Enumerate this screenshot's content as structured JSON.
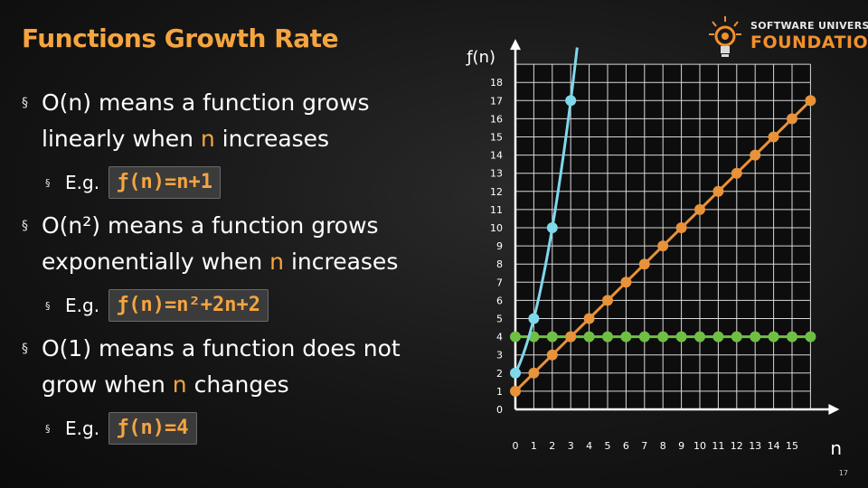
{
  "slide": {
    "title": "Functions Growth Rate",
    "number": "17"
  },
  "logo": {
    "line1": "SOFTWARE UNIVERSITY",
    "line2": "FOUNDATION",
    "icon": "lightbulb-gear-icon"
  },
  "bullets": [
    {
      "marker": "§",
      "pre": "O(n) means a function grows linearly when ",
      "var": "n",
      "post": " increases",
      "example_label": "E.g.",
      "example_code": "ƒ(n)=n+1"
    },
    {
      "marker": "§",
      "pre": "O(n²) means a function grows exponentially when ",
      "var": "n",
      "post": " increases",
      "example_label": "E.g.",
      "example_code": "ƒ(n)=n²+2n+2"
    },
    {
      "marker": "§",
      "pre": "O(1) means a function does not grow when ",
      "var": "n",
      "post": " changes",
      "example_label": "E.g.",
      "example_code": "ƒ(n)=4"
    }
  ],
  "colors": {
    "accent": "#f5a540",
    "linear": "#e8923a",
    "quadratic": "#7fd8ec",
    "constant": "#6fbf45"
  },
  "chart_data": {
    "type": "line",
    "ylabel": "ƒ(n)",
    "xlabel": "n",
    "x_ticks": [
      "0",
      "1",
      "2",
      "3",
      "4",
      "5",
      "6",
      "7",
      "8",
      "9",
      "10",
      "11",
      "12",
      "13",
      "14",
      "15"
    ],
    "y_ticks": [
      "0",
      "1",
      "2",
      "3",
      "4",
      "5",
      "6",
      "7",
      "8",
      "9",
      "10",
      "11",
      "12",
      "13",
      "14",
      "15",
      "16",
      "17",
      "18"
    ],
    "xlim": [
      0,
      16
    ],
    "ylim": [
      0,
      19
    ],
    "grid": true,
    "series": [
      {
        "color": "#6fbf45",
        "x": [
          0,
          1,
          2,
          3,
          4,
          5,
          6,
          7,
          8,
          9,
          10,
          11,
          12,
          13,
          14,
          15,
          16
        ],
        "y": [
          4,
          4,
          4,
          4,
          4,
          4,
          4,
          4,
          4,
          4,
          4,
          4,
          4,
          4,
          4,
          4,
          4
        ]
      },
      {
        "color": "#e8923a",
        "x": [
          0,
          1,
          2,
          3,
          4,
          5,
          6,
          7,
          8,
          9,
          10,
          11,
          12,
          13,
          14,
          15,
          16
        ],
        "y": [
          1,
          2,
          3,
          4,
          5,
          6,
          7,
          8,
          9,
          10,
          11,
          12,
          13,
          14,
          15,
          16,
          17
        ]
      },
      {
        "color": "#7fd8ec",
        "x": [
          0,
          1,
          2,
          3
        ],
        "y": [
          2,
          5,
          10,
          17
        ]
      }
    ]
  }
}
